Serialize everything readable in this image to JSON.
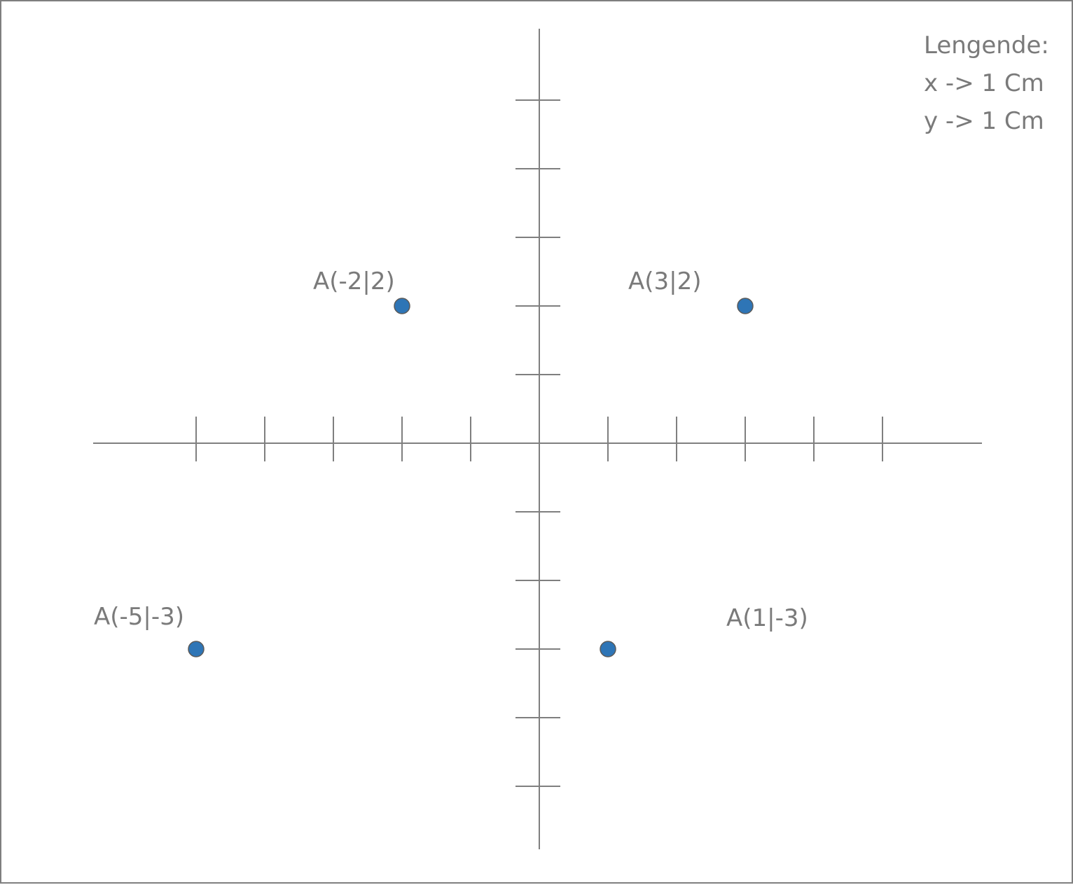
{
  "chart_data": {
    "type": "scatter",
    "title": "",
    "xlabel": "",
    "ylabel": "",
    "xlim": [
      -6,
      6
    ],
    "ylim": [
      -6,
      5
    ],
    "grid": false,
    "legend": {
      "title": "Lengende:",
      "lines": [
        "x -> 1 Cm",
        "y -> 1 Cm"
      ],
      "placement": "top-right"
    },
    "colors": {
      "axis": "#7f7f7f",
      "point": "#2e75b6",
      "point_edge": "#5a5a5a",
      "text": "#7a7a7a"
    },
    "points": [
      {
        "label": "A(-2|2)",
        "x": -2,
        "y": 2
      },
      {
        "label": "A(3|2)",
        "x": 3,
        "y": 2
      },
      {
        "label": "A(-5|-3)",
        "x": -5,
        "y": -3
      },
      {
        "label": "A(1|-3)",
        "x": 1,
        "y": -3
      }
    ]
  }
}
